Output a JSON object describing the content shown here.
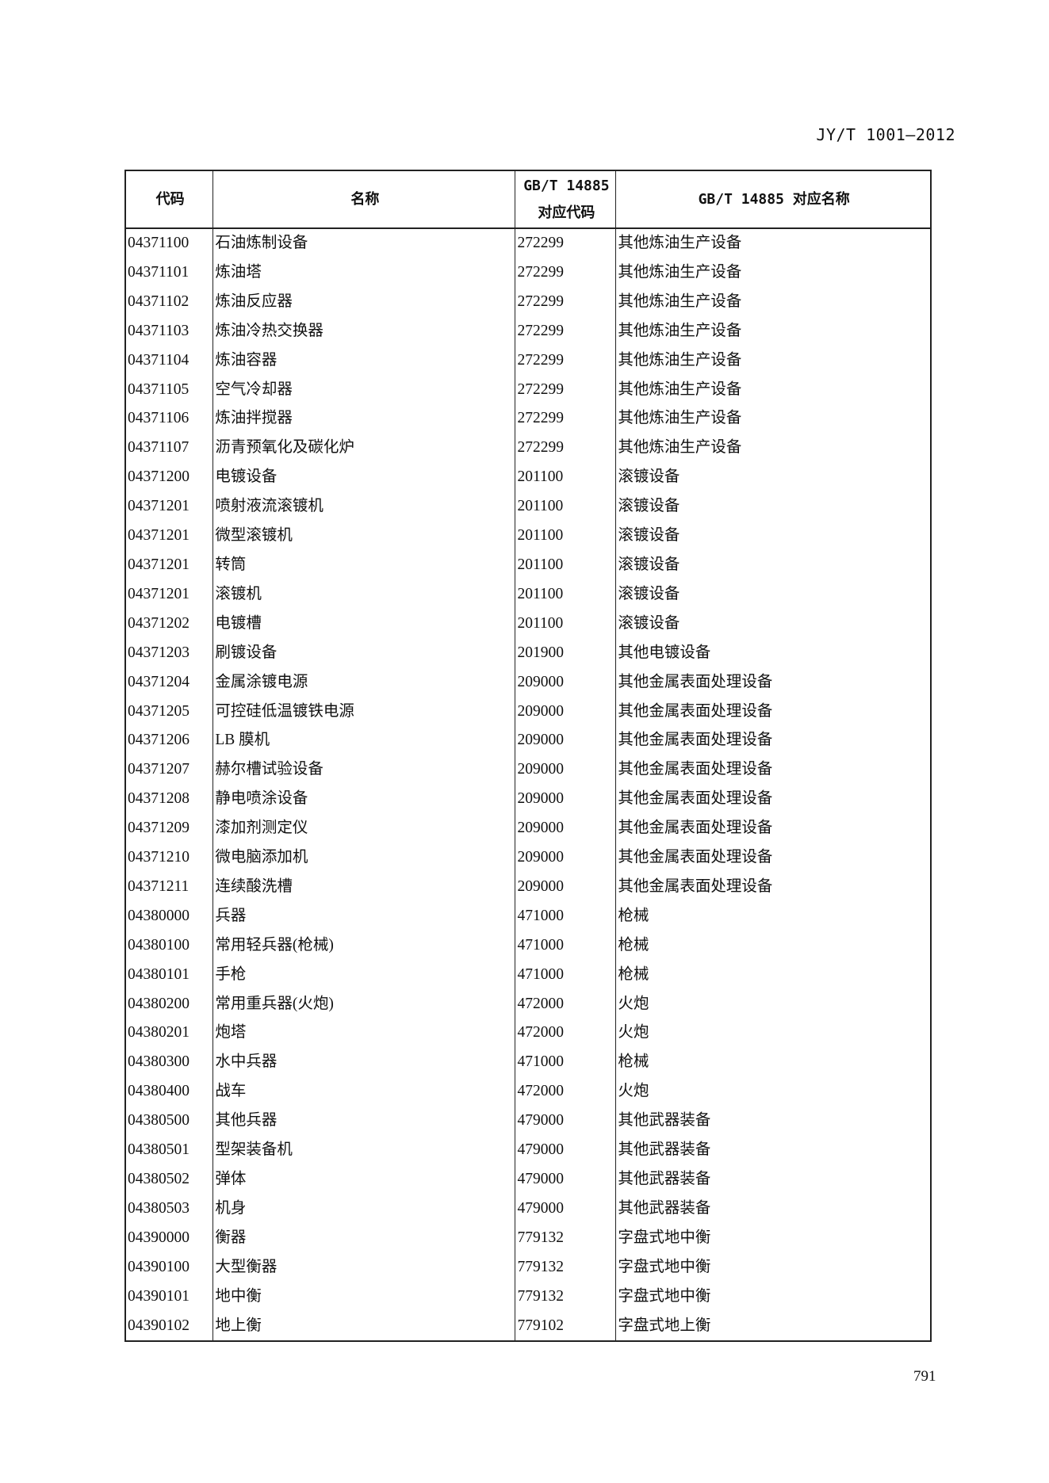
{
  "header": {
    "standard": "JY/T 1001—2012"
  },
  "table": {
    "columns": [
      "代码",
      "名称",
      "GB/T 14885\n对应代码",
      "GB/T 14885 对应名称"
    ],
    "column_lines": [
      [
        "代码"
      ],
      [
        "名称"
      ],
      [
        "GB/T 14885",
        "对应代码"
      ],
      [
        "GB/T 14885 对应名称"
      ]
    ],
    "rows": [
      [
        "04371100",
        "石油炼制设备",
        "272299",
        "其他炼油生产设备"
      ],
      [
        "04371101",
        "炼油塔",
        "272299",
        "其他炼油生产设备"
      ],
      [
        "04371102",
        "炼油反应器",
        "272299",
        "其他炼油生产设备"
      ],
      [
        "04371103",
        "炼油冷热交换器",
        "272299",
        "其他炼油生产设备"
      ],
      [
        "04371104",
        "炼油容器",
        "272299",
        "其他炼油生产设备"
      ],
      [
        "04371105",
        "空气冷却器",
        "272299",
        "其他炼油生产设备"
      ],
      [
        "04371106",
        "炼油拌搅器",
        "272299",
        "其他炼油生产设备"
      ],
      [
        "04371107",
        "沥青预氧化及碳化炉",
        "272299",
        "其他炼油生产设备"
      ],
      [
        "04371200",
        "电镀设备",
        "201100",
        "滚镀设备"
      ],
      [
        "04371201",
        "喷射液流滚镀机",
        "201100",
        "滚镀设备"
      ],
      [
        "04371201",
        "微型滚镀机",
        "201100",
        "滚镀设备"
      ],
      [
        "04371201",
        "转筒",
        "201100",
        "滚镀设备"
      ],
      [
        "04371201",
        "滚镀机",
        "201100",
        "滚镀设备"
      ],
      [
        "04371202",
        "电镀槽",
        "201100",
        "滚镀设备"
      ],
      [
        "04371203",
        "刷镀设备",
        "201900",
        "其他电镀设备"
      ],
      [
        "04371204",
        "金属涂镀电源",
        "209000",
        "其他金属表面处理设备"
      ],
      [
        "04371205",
        "可控硅低温镀铁电源",
        "209000",
        "其他金属表面处理设备"
      ],
      [
        "04371206",
        "LB 膜机",
        "209000",
        "其他金属表面处理设备"
      ],
      [
        "04371207",
        "赫尔槽试验设备",
        "209000",
        "其他金属表面处理设备"
      ],
      [
        "04371208",
        "静电喷涂设备",
        "209000",
        "其他金属表面处理设备"
      ],
      [
        "04371209",
        "漆加剂测定仪",
        "209000",
        "其他金属表面处理设备"
      ],
      [
        "04371210",
        "微电脑添加机",
        "209000",
        "其他金属表面处理设备"
      ],
      [
        "04371211",
        "连续酸洗槽",
        "209000",
        "其他金属表面处理设备"
      ],
      [
        "04380000",
        "兵器",
        "471000",
        "枪械"
      ],
      [
        "04380100",
        "常用轻兵器(枪械)",
        "471000",
        "枪械"
      ],
      [
        "04380101",
        "手枪",
        "471000",
        "枪械"
      ],
      [
        "04380200",
        "常用重兵器(火炮)",
        "472000",
        "火炮"
      ],
      [
        "04380201",
        "炮塔",
        "472000",
        "火炮"
      ],
      [
        "04380300",
        "水中兵器",
        "471000",
        "枪械"
      ],
      [
        "04380400",
        "战车",
        "472000",
        "火炮"
      ],
      [
        "04380500",
        "其他兵器",
        "479000",
        "其他武器装备"
      ],
      [
        "04380501",
        "型架装备机",
        "479000",
        "其他武器装备"
      ],
      [
        "04380502",
        "弹体",
        "479000",
        "其他武器装备"
      ],
      [
        "04380503",
        "机身",
        "479000",
        "其他武器装备"
      ],
      [
        "04390000",
        "衡器",
        "779132",
        "字盘式地中衡"
      ],
      [
        "04390100",
        "大型衡器",
        "779132",
        "字盘式地中衡"
      ],
      [
        "04390101",
        "地中衡",
        "779132",
        "字盘式地中衡"
      ],
      [
        "04390102",
        "地上衡",
        "779102",
        "字盘式地上衡"
      ]
    ]
  },
  "footer": {
    "page_number": "791"
  }
}
